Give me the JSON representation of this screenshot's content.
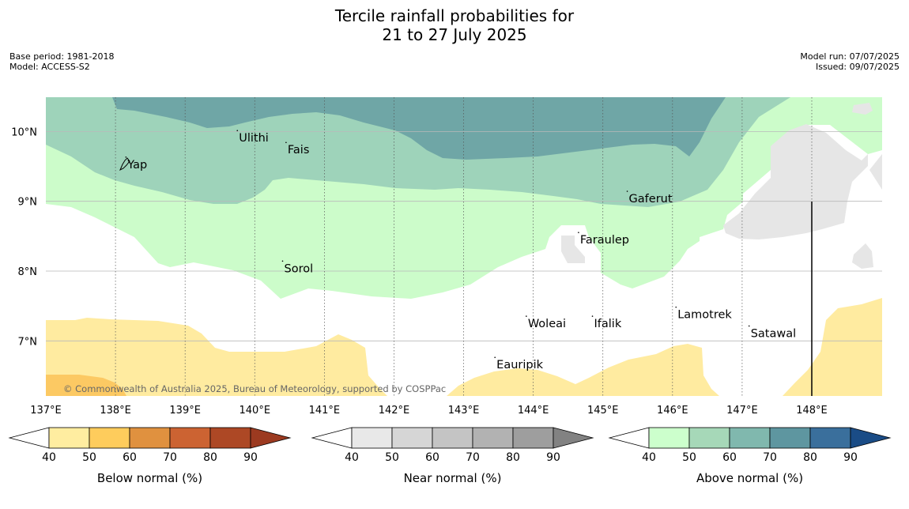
{
  "title_line1": "Tercile rainfall probabilities for",
  "title_line2": "21 to 27 July 2025",
  "meta_left": {
    "base_period": "Base period: 1981-2018",
    "model": "Model: ACCESS-S2"
  },
  "meta_right": {
    "model_run": "Model run: 07/07/2025",
    "issued": "Issued: 09/07/2025"
  },
  "map": {
    "lon_range": [
      137,
      149
    ],
    "lat_range": [
      6.25,
      10.5
    ],
    "lon_ticks": [
      {
        "value": 137,
        "label": "137°E"
      },
      {
        "value": 138,
        "label": "138°E"
      },
      {
        "value": 139,
        "label": "139°E"
      },
      {
        "value": 140,
        "label": "140°E"
      },
      {
        "value": 141,
        "label": "141°E"
      },
      {
        "value": 142,
        "label": "142°E"
      },
      {
        "value": 143,
        "label": "143°E"
      },
      {
        "value": 144,
        "label": "144°E"
      },
      {
        "value": 145,
        "label": "145°E"
      },
      {
        "value": 146,
        "label": "146°E"
      },
      {
        "value": 147,
        "label": "147°E"
      },
      {
        "value": 148,
        "label": "148°E"
      }
    ],
    "lat_ticks": [
      {
        "value": 10,
        "label": "10°N"
      },
      {
        "value": 9,
        "label": "9°N"
      },
      {
        "value": 8,
        "label": "8°N"
      },
      {
        "value": 7,
        "label": "7°N"
      }
    ],
    "places": [
      {
        "name": "Yap",
        "lon": 138.15,
        "lat": 9.52
      },
      {
        "name": "Ulithi",
        "lon": 139.75,
        "lat": 9.9
      },
      {
        "name": "Fais",
        "lon": 140.45,
        "lat": 9.73
      },
      {
        "name": "Gaferut",
        "lon": 145.35,
        "lat": 9.03
      },
      {
        "name": "Faraulep",
        "lon": 144.65,
        "lat": 8.44
      },
      {
        "name": "Sorol",
        "lon": 140.4,
        "lat": 8.03
      },
      {
        "name": "Woleai",
        "lon": 143.9,
        "lat": 7.24
      },
      {
        "name": "Ifalik",
        "lon": 144.85,
        "lat": 7.24
      },
      {
        "name": "Lamotrek",
        "lon": 146.05,
        "lat": 7.37
      },
      {
        "name": "Satawal",
        "lon": 147.1,
        "lat": 7.1
      },
      {
        "name": "Eauripik",
        "lon": 143.45,
        "lat": 6.65
      }
    ],
    "copyright": "© Commonwealth of Australia 2025, Bureau of Meteorology, supported by COSPPac"
  },
  "colorbars": [
    {
      "label": "Below normal (%)",
      "ticks": [
        "40",
        "50",
        "60",
        "70",
        "80",
        "90"
      ],
      "colors": [
        "#ffeda0",
        "#fecc5c",
        "#e0913f",
        "#cc6332",
        "#ad4825"
      ],
      "over_color": "#9c3a20"
    },
    {
      "label": "Near normal (%)",
      "ticks": [
        "40",
        "50",
        "60",
        "70",
        "80",
        "90"
      ],
      "colors": [
        "#e8e8e8",
        "#d6d6d6",
        "#c4c4c4",
        "#b2b2b2",
        "#9e9e9e"
      ],
      "over_color": "#828282"
    },
    {
      "label": "Above normal (%)",
      "ticks": [
        "40",
        "50",
        "60",
        "70",
        "80",
        "90"
      ],
      "colors": [
        "#ccffcc",
        "#a6d8b8",
        "#80b8ae",
        "#5e96a0",
        "#3a6f9c"
      ],
      "over_color": "#1a4c86"
    }
  ],
  "colors": {
    "above_50": "#ccfcca",
    "above_60": "#9ed3ba",
    "above_70": "#6fa6a6",
    "below_40": "#ffeba0",
    "below_50": "#fcc963",
    "near_40": "#e6e6e6"
  }
}
